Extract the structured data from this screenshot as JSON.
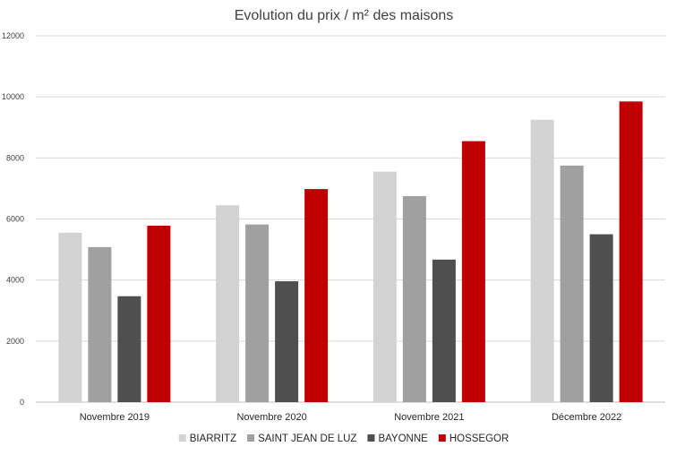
{
  "chart_data": {
    "type": "bar",
    "title": "Evolution du prix / m² des maisons",
    "xlabel": "",
    "ylabel": "",
    "ylim": [
      0,
      12000
    ],
    "yticks": [
      0,
      2000,
      4000,
      6000,
      8000,
      10000,
      12000
    ],
    "grid": true,
    "legend": "bottom",
    "categories": [
      "Novembre 2019",
      "Novembre 2020",
      "Novembre 2021",
      "Décembre 2022"
    ],
    "series": [
      {
        "name": "BIARRITZ",
        "color": "#d3d3d3",
        "values": [
          5550,
          6450,
          7550,
          9250
        ]
      },
      {
        "name": "SAINT JEAN DE LUZ",
        "color": "#a0a0a0",
        "values": [
          5080,
          5820,
          6750,
          7750
        ]
      },
      {
        "name": "BAYONNE",
        "color": "#4f4f4f",
        "values": [
          3470,
          3960,
          4670,
          5500
        ]
      },
      {
        "name": "HOSSEGOR",
        "color": "#c00000",
        "values": [
          5780,
          6980,
          8550,
          9850
        ]
      }
    ]
  }
}
